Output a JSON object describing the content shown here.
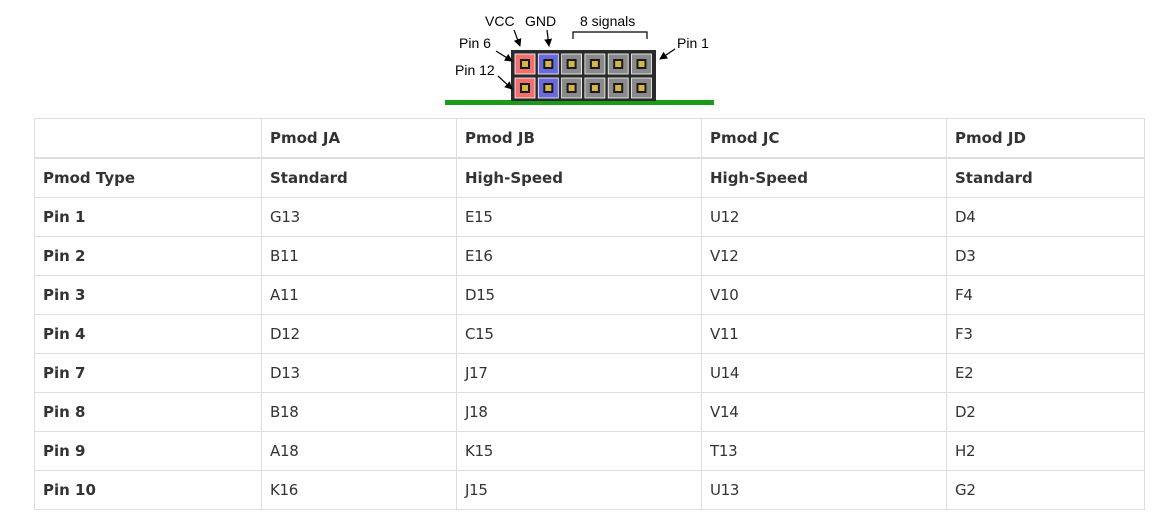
{
  "diagram": {
    "labels": {
      "vcc": "VCC",
      "gnd": "GND",
      "signals": "8 signals",
      "pin6": "Pin 6",
      "pin1": "Pin 1",
      "pin12": "Pin 12"
    },
    "colors": {
      "vcc_pin": "#f07070",
      "gnd_pin": "#6a6ae0",
      "signal_pin": "#8a8a8a",
      "board": "#1a9a1a"
    }
  },
  "table": {
    "headers": [
      "",
      "Pmod JA",
      "Pmod JB",
      "Pmod JC",
      "Pmod JD"
    ],
    "type_row": {
      "label": "Pmod Type",
      "values": [
        "Standard",
        "High-Speed",
        "High-Speed",
        "Standard"
      ]
    },
    "rows": [
      {
        "label": "Pin 1",
        "values": [
          "G13",
          "E15",
          "U12",
          "D4"
        ]
      },
      {
        "label": "Pin 2",
        "values": [
          "B11",
          "E16",
          "V12",
          "D3"
        ]
      },
      {
        "label": "Pin 3",
        "values": [
          "A11",
          "D15",
          "V10",
          "F4"
        ]
      },
      {
        "label": "Pin 4",
        "values": [
          "D12",
          "C15",
          "V11",
          "F3"
        ]
      },
      {
        "label": "Pin 7",
        "values": [
          "D13",
          "J17",
          "U14",
          "E2"
        ]
      },
      {
        "label": "Pin 8",
        "values": [
          "B18",
          "J18",
          "V14",
          "D2"
        ]
      },
      {
        "label": "Pin 9",
        "values": [
          "A18",
          "K15",
          "T13",
          "H2"
        ]
      },
      {
        "label": "Pin 10",
        "values": [
          "K16",
          "J15",
          "U13",
          "G2"
        ]
      }
    ]
  }
}
